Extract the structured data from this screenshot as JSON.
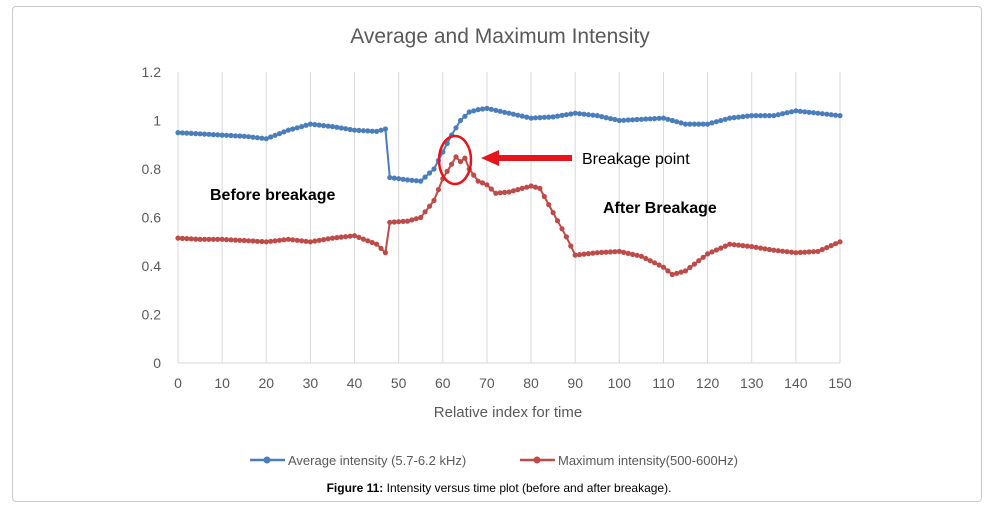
{
  "caption": {
    "label": "Figure 11:",
    "text": "Intensity versus time plot (before and after breakage)."
  },
  "chart_data": {
    "type": "line",
    "title": "Average and Maximum Intensity",
    "xlabel": "Relative index for time",
    "ylabel": "",
    "xlim": [
      0,
      150
    ],
    "ylim": [
      0,
      1.2
    ],
    "x_ticks": [
      "0",
      "10",
      "20",
      "30",
      "40",
      "50",
      "60",
      "70",
      "80",
      "90",
      "100",
      "110",
      "120",
      "130",
      "140",
      "150"
    ],
    "y_ticks": [
      "0",
      "0.2",
      "0.4",
      "0.6",
      "0.8",
      "1",
      "1.2"
    ],
    "grid": "vertical",
    "legend_position": "bottom",
    "series": [
      {
        "name": "Average intensity (5.7-6.2 kHz)",
        "color": "#4a7ebb",
        "x": [
          0,
          5,
          10,
          15,
          20,
          25,
          30,
          35,
          40,
          45,
          47,
          48,
          52,
          55,
          58,
          60,
          62,
          64,
          66,
          68,
          70,
          75,
          80,
          85,
          90,
          95,
          100,
          105,
          110,
          115,
          120,
          125,
          130,
          135,
          140,
          145,
          150
        ],
        "values": [
          0.95,
          0.945,
          0.94,
          0.935,
          0.925,
          0.96,
          0.985,
          0.975,
          0.96,
          0.955,
          0.965,
          0.765,
          0.755,
          0.75,
          0.8,
          0.87,
          0.94,
          1.0,
          1.035,
          1.045,
          1.05,
          1.03,
          1.01,
          1.015,
          1.03,
          1.02,
          1.0,
          1.005,
          1.01,
          0.985,
          0.985,
          1.01,
          1.02,
          1.02,
          1.04,
          1.03,
          1.02
        ]
      },
      {
        "name": "Maximum intensity(500-600Hz)",
        "color": "#be4b48",
        "x": [
          0,
          5,
          10,
          15,
          20,
          25,
          30,
          35,
          40,
          45,
          47,
          48,
          52,
          55,
          58,
          60,
          62,
          63,
          64,
          65,
          66,
          68,
          70,
          72,
          75,
          80,
          82,
          85,
          88,
          90,
          95,
          100,
          105,
          110,
          112,
          115,
          120,
          125,
          130,
          135,
          140,
          145,
          150
        ],
        "values": [
          0.515,
          0.51,
          0.51,
          0.505,
          0.5,
          0.51,
          0.5,
          0.515,
          0.525,
          0.49,
          0.455,
          0.58,
          0.585,
          0.6,
          0.67,
          0.76,
          0.82,
          0.85,
          0.83,
          0.845,
          0.8,
          0.75,
          0.735,
          0.7,
          0.705,
          0.73,
          0.72,
          0.62,
          0.52,
          0.445,
          0.455,
          0.46,
          0.44,
          0.395,
          0.365,
          0.38,
          0.45,
          0.49,
          0.48,
          0.465,
          0.455,
          0.46,
          0.5
        ]
      }
    ],
    "annotations": {
      "before": "Before breakage",
      "after": "After Breakage",
      "breakage_point": "Breakage point"
    }
  }
}
